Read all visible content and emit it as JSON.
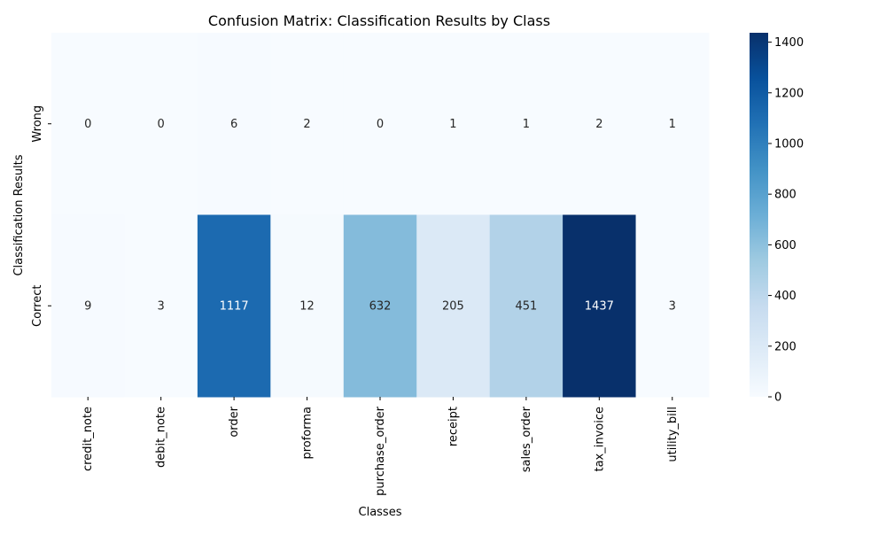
{
  "chart_data": {
    "type": "heatmap",
    "title": "Confusion Matrix: Classification Results by Class",
    "xlabel": "Classes",
    "ylabel": "Classification Results",
    "x_categories": [
      "credit_note",
      "debit_note",
      "order",
      "proforma",
      "purchase_order",
      "receipt",
      "sales_order",
      "tax_invoice",
      "utility_bill"
    ],
    "y_categories": [
      "Wrong",
      "Correct"
    ],
    "values": [
      [
        0,
        0,
        6,
        2,
        0,
        1,
        1,
        2,
        1
      ],
      [
        9,
        3,
        1117,
        12,
        632,
        205,
        451,
        1437,
        3
      ]
    ],
    "colorbar": {
      "colormap": "Blues",
      "range": [
        0,
        1437
      ],
      "ticks": [
        0,
        200,
        400,
        600,
        800,
        1000,
        1200,
        1400
      ],
      "tick_labels": [
        "0",
        "200",
        "400",
        "600",
        "800",
        "1000",
        "1200",
        "1400"
      ]
    },
    "annotations": "cell values shown in each cell"
  }
}
